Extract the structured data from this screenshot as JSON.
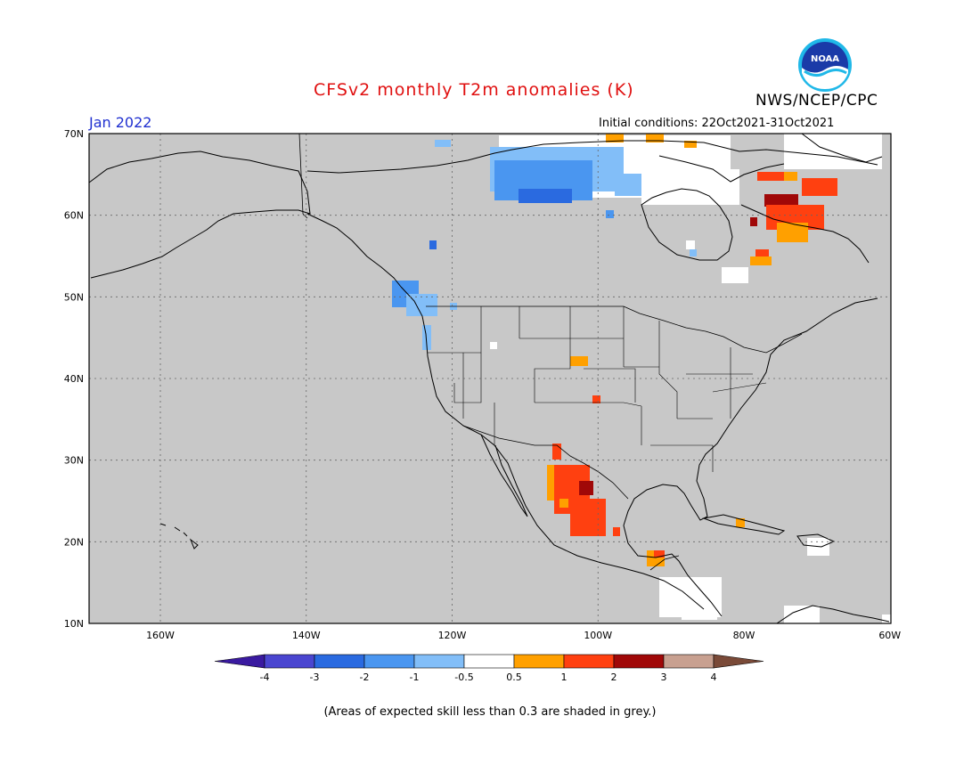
{
  "header": {
    "title": "CFSv2 monthly T2m anomalies (K)",
    "agency": "NWS/NCEP/CPC",
    "logo_text": "NOAA",
    "target_month": "Jan 2022",
    "initial_conditions": "Initial conditions: 22Oct2021-31Oct2021"
  },
  "map": {
    "lat_labels": [
      "70N",
      "60N",
      "50N",
      "40N",
      "30N",
      "20N",
      "10N"
    ],
    "lon_labels": [
      "160W",
      "140W",
      "120W",
      "100W",
      "80W",
      "60W"
    ],
    "background_color": "#c8c8c8"
  },
  "colorbar": {
    "labels": [
      "-4",
      "-3",
      "-2",
      "-1",
      "-0.5",
      "0.5",
      "1",
      "2",
      "3",
      "4"
    ],
    "colors": [
      "#3a1aa0",
      "#4a46d0",
      "#2a6ae0",
      "#4a96f0",
      "#82bef8",
      "#ffffff",
      "#ffa000",
      "#ff4010",
      "#a00808",
      "#c8a090",
      "#7a4a38"
    ]
  },
  "footnote": "(Areas of expected skill less than 0.3 are shaded in grey.)"
}
